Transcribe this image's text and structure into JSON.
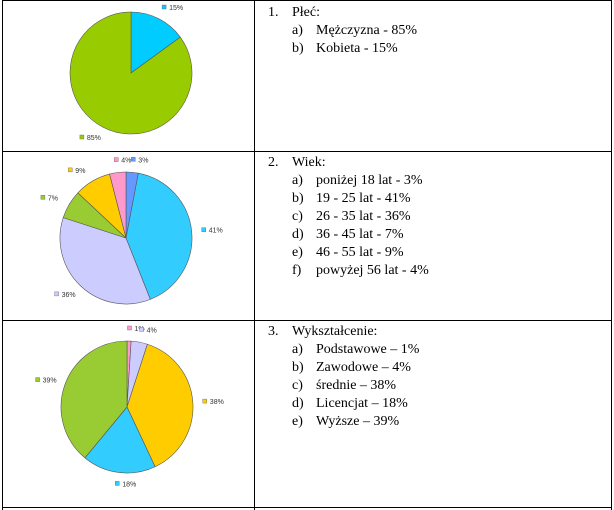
{
  "chart_data": [
    {
      "type": "pie",
      "slices": [
        {
          "label": "15%",
          "value": 15,
          "color": "#00CCFF"
        },
        {
          "label": "85%",
          "value": 85,
          "color": "#99CC00"
        }
      ]
    },
    {
      "type": "pie",
      "slices": [
        {
          "label": "3%",
          "value": 3,
          "color": "#6699FF"
        },
        {
          "label": "41%",
          "value": 41,
          "color": "#33CCFF"
        },
        {
          "label": "36%",
          "value": 36,
          "color": "#CCCCFF"
        },
        {
          "label": "7%",
          "value": 7,
          "color": "#99CC33"
        },
        {
          "label": "9%",
          "value": 9,
          "color": "#FFCC00"
        },
        {
          "label": "4%",
          "value": 4,
          "color": "#FF99CC"
        }
      ]
    },
    {
      "type": "pie",
      "slices": [
        {
          "label": "1%",
          "value": 1,
          "color": "#FF99CC"
        },
        {
          "label": "4%",
          "value": 4,
          "color": "#CCCCFF"
        },
        {
          "label": "38%",
          "value": 38,
          "color": "#FFCC00"
        },
        {
          "label": "18%",
          "value": 18,
          "color": "#33CCFF"
        },
        {
          "label": "39%",
          "value": 39,
          "color": "#99CC33"
        }
      ]
    }
  ],
  "sections": [
    {
      "number": "1.",
      "title": "Płeć:",
      "items": [
        {
          "letter": "a)",
          "text": "Mężczyzna - 85%"
        },
        {
          "letter": "b)",
          "text": "Kobieta - 15%"
        }
      ]
    },
    {
      "number": "2.",
      "title": "Wiek:",
      "items": [
        {
          "letter": "a)",
          "text": "poniżej 18 lat - 3%"
        },
        {
          "letter": "b)",
          "text": "19 - 25 lat - 41%"
        },
        {
          "letter": "c)",
          "text": "26 - 35 lat - 36%"
        },
        {
          "letter": "d)",
          "text": "36 - 45 lat - 7%"
        },
        {
          "letter": "e)",
          "text": "46 - 55 lat - 9%"
        },
        {
          "letter": "f)",
          "text": "powyżej 56 lat - 4%"
        }
      ]
    },
    {
      "number": "3.",
      "title": "Wykształcenie:",
      "items": [
        {
          "letter": "a)",
          "text": "Podstawowe – 1%"
        },
        {
          "letter": "b)",
          "text": "Zawodowe – 4%"
        },
        {
          "letter": "c)",
          "text": "średnie – 38%"
        },
        {
          "letter": "d)",
          "text": "Licencjat – 18%"
        },
        {
          "letter": "e)",
          "text": "Wyższe – 39%"
        }
      ]
    }
  ]
}
